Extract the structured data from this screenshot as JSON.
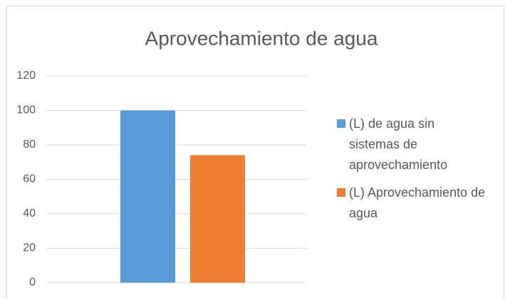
{
  "chart_data": {
    "type": "bar",
    "title": "Aprovechamiento de agua",
    "categories": [
      null
    ],
    "series": [
      {
        "name": "(L) de agua sin sistemas de aprovechamiento",
        "color": "#5b9bd5",
        "values": [
          100
        ]
      },
      {
        "name": "(L) Aprovechamiento de agua",
        "color": "#ed7d31",
        "values": [
          74
        ]
      }
    ],
    "ylim": [
      0,
      120
    ],
    "yticks": [
      0,
      20,
      40,
      60,
      80,
      100,
      120
    ],
    "grid": true,
    "legend": "right"
  }
}
